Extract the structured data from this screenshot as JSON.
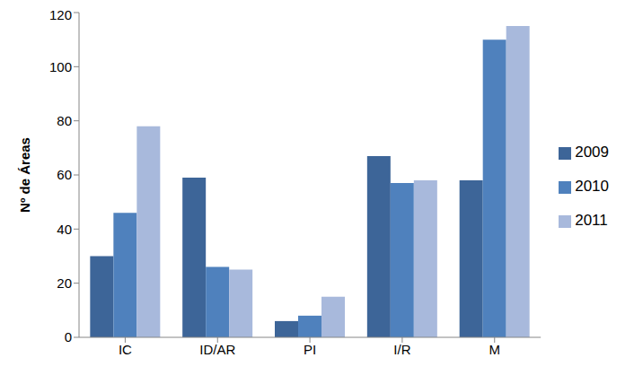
{
  "chart_data": {
    "type": "bar",
    "y_label": "Nº de Áreas",
    "categories": [
      "IC",
      "ID/AR",
      "PI",
      "I/R",
      "M"
    ],
    "series": [
      {
        "name": "2009",
        "color": "#3d6598",
        "values": [
          30,
          59,
          6,
          67,
          58
        ]
      },
      {
        "name": "2010",
        "color": "#4f81bd",
        "values": [
          46,
          26,
          8,
          57,
          110
        ]
      },
      {
        "name": "2011",
        "color": "#a8b9dc",
        "values": [
          78,
          25,
          15,
          58,
          115
        ]
      }
    ],
    "ylim": [
      0,
      120
    ],
    "yticks": [
      0,
      20,
      40,
      60,
      80,
      100,
      120
    ],
    "grid": false,
    "legend": "right"
  }
}
